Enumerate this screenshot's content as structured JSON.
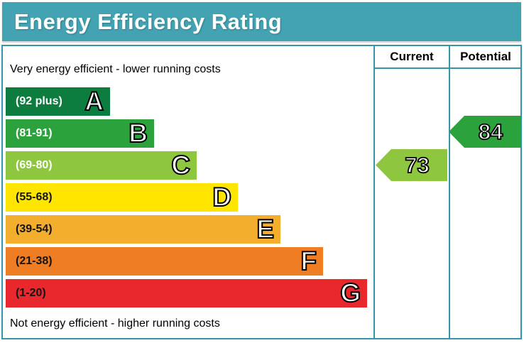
{
  "title": "Energy Efficiency Rating",
  "notes": {
    "top": "Very energy efficient - lower running costs",
    "bottom": "Not energy efficient - higher running costs"
  },
  "columns": {
    "current": "Current",
    "potential": "Potential"
  },
  "colors": {
    "banner_teal": "#44a3b3",
    "border_teal": "#3596a8",
    "band_a": "#0c7d3f",
    "band_b": "#2ba23c",
    "band_c": "#8ec63f",
    "band_d": "#ffe500",
    "band_e": "#f4ae2d",
    "band_f": "#ee7d23",
    "band_g": "#e8282d"
  },
  "chart_data": {
    "type": "bar",
    "title": "Energy Efficiency Rating",
    "orientation": "horizontal",
    "categories": [
      "A",
      "B",
      "C",
      "D",
      "E",
      "F",
      "G"
    ],
    "bands": [
      {
        "letter": "A",
        "range": "(92 plus)",
        "color": "#0c7d3f",
        "label_color": "#ffffff"
      },
      {
        "letter": "B",
        "range": "(81-91)",
        "color": "#2ba23c",
        "label_color": "#ffffff"
      },
      {
        "letter": "C",
        "range": "(69-80)",
        "color": "#8ec63f",
        "label_color": "#ffffff"
      },
      {
        "letter": "D",
        "range": "(55-68)",
        "color": "#ffe500",
        "label_color": "#000000"
      },
      {
        "letter": "E",
        "range": "(39-54)",
        "color": "#f4ae2d",
        "label_color": "#000000"
      },
      {
        "letter": "F",
        "range": "(21-38)",
        "color": "#ee7d23",
        "label_color": "#000000"
      },
      {
        "letter": "G",
        "range": "(1-20)",
        "color": "#e8282d",
        "label_color": "#000000"
      }
    ],
    "ratings": {
      "current": {
        "value": "73",
        "band": "C",
        "color": "#8ec63f"
      },
      "potential": {
        "value": "84",
        "band": "B",
        "color": "#2ba23c"
      }
    },
    "annotations": [
      "Very energy efficient - lower running costs",
      "Not energy efficient - higher running costs"
    ]
  }
}
